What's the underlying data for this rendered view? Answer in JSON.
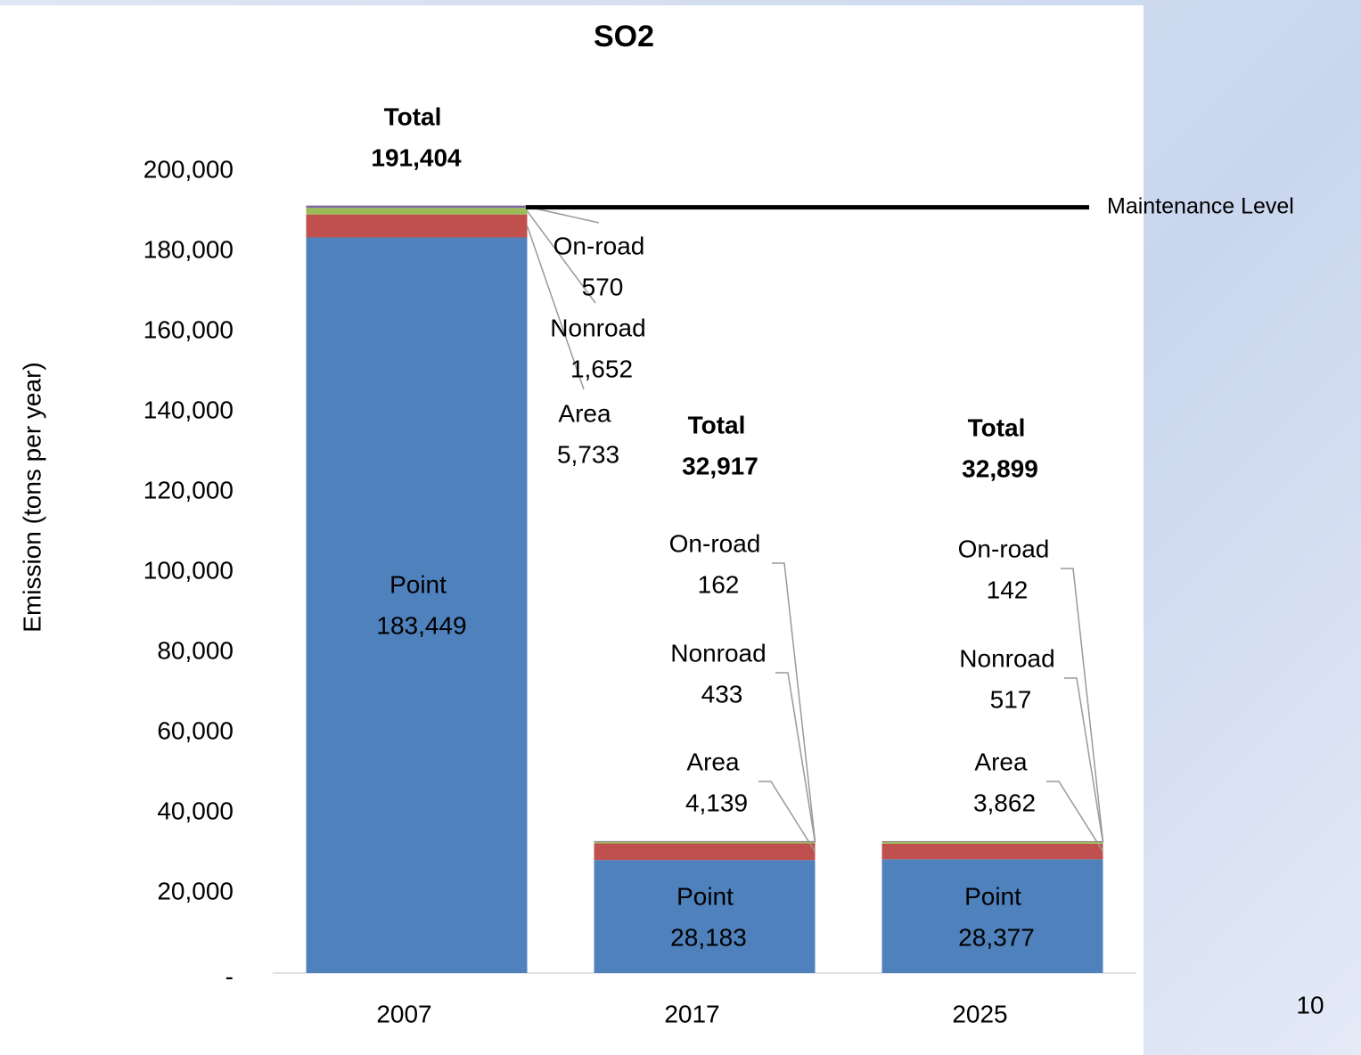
{
  "chart_data": {
    "type": "bar",
    "stacked": true,
    "title": "SO2",
    "y_axis_label": "Emission (tons per year)",
    "categories": [
      "2007",
      "2017",
      "2025"
    ],
    "series": [
      {
        "name": "Point",
        "color": "#4f81bd",
        "values": [
          183449,
          28183,
          28377
        ],
        "value_labels": [
          "183,449",
          "28,183",
          "28,377"
        ]
      },
      {
        "name": "Area",
        "color": "#c0504d",
        "values": [
          5733,
          4139,
          3862
        ],
        "value_labels": [
          "5,733",
          "4,139",
          "3,862"
        ]
      },
      {
        "name": "Nonroad",
        "color": "#9bbb59",
        "values": [
          1652,
          433,
          517
        ],
        "value_labels": [
          "1,652",
          "433",
          "517"
        ]
      },
      {
        "name": "On-road",
        "color": "#8064a2",
        "values": [
          570,
          162,
          142
        ],
        "value_labels": [
          "570",
          "162",
          "142"
        ]
      }
    ],
    "totals": {
      "label": "Total",
      "values": [
        191404,
        32917,
        32899
      ],
      "value_labels": [
        "191,404",
        "32,917",
        "32,899"
      ]
    },
    "maintenance_level": {
      "label": "Maintenance Level",
      "value": 191404
    },
    "ylim": [
      0,
      200000
    ],
    "yticks": [
      {
        "value": 0,
        "label": "-"
      },
      {
        "value": 20000,
        "label": "20,000"
      },
      {
        "value": 40000,
        "label": "40,000"
      },
      {
        "value": 60000,
        "label": "60,000"
      },
      {
        "value": 80000,
        "label": "80,000"
      },
      {
        "value": 100000,
        "label": "100,000"
      },
      {
        "value": 120000,
        "label": "120,000"
      },
      {
        "value": 140000,
        "label": "140,000"
      },
      {
        "value": 160000,
        "label": "160,000"
      },
      {
        "value": 180000,
        "label": "180,000"
      },
      {
        "value": 200000,
        "label": "200,000"
      }
    ],
    "page_number": "10"
  }
}
